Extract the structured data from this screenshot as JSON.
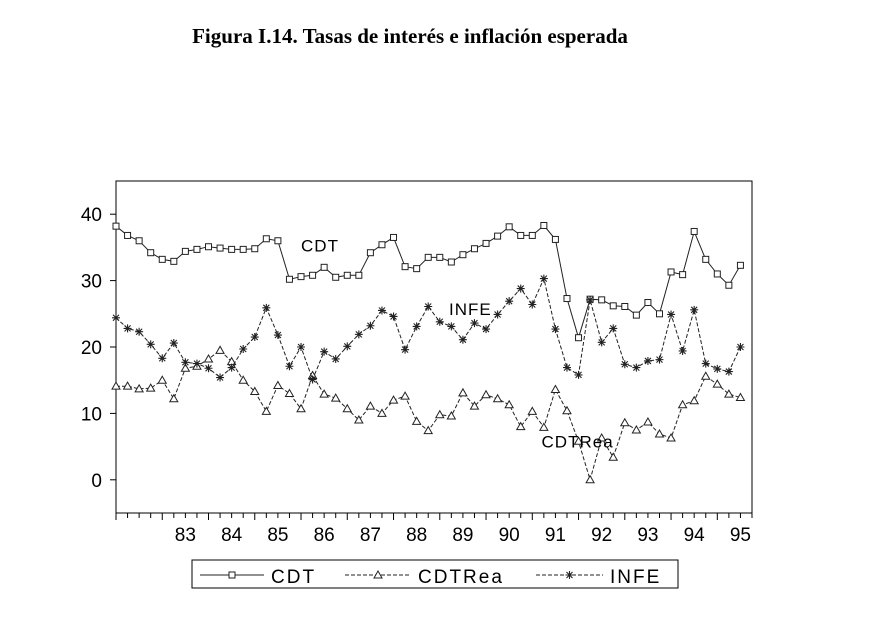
{
  "title": "Figura I.14. Tasas de interés e inflación esperada",
  "chart_data": {
    "type": "line",
    "title": "Figura I.14. Tasas de interés e inflación esperada",
    "xlabel": "",
    "ylabel": "",
    "ylim": [
      -5,
      45
    ],
    "yticks": [
      0,
      10,
      20,
      30,
      40
    ],
    "x_start": 82.0,
    "x_step": 0.25,
    "x_tick_labels": [
      "83",
      "84",
      "85",
      "86",
      "87",
      "88",
      "89",
      "90",
      "91",
      "92",
      "93",
      "94",
      "95"
    ],
    "x_tick_values": [
      83,
      84,
      85,
      86,
      87,
      88,
      89,
      90,
      91,
      92,
      93,
      94,
      95
    ],
    "grid": false,
    "legend_position": "bottom",
    "series": [
      {
        "name": "CDT",
        "marker": "square",
        "dash": "solid",
        "label": "CDT",
        "values": [
          38.2,
          36.8,
          36.0,
          34.2,
          33.2,
          32.9,
          34.4,
          34.7,
          35.1,
          34.9,
          34.7,
          34.7,
          34.8,
          36.3,
          36.0,
          30.2,
          30.6,
          30.8,
          32.0,
          30.5,
          30.8,
          30.8,
          34.2,
          35.4,
          36.5,
          32.1,
          31.8,
          33.5,
          33.5,
          32.8,
          33.9,
          34.8,
          35.6,
          36.7,
          38.1,
          36.8,
          36.8,
          38.3,
          36.2,
          27.3,
          21.4,
          27.2,
          27.1,
          26.2,
          26.1,
          24.8,
          26.7,
          25.0,
          31.3,
          30.9,
          37.4,
          33.2,
          31.0,
          29.3,
          32.3
        ]
      },
      {
        "name": "CDTRea",
        "marker": "triangle",
        "dash": "dashed",
        "label": "CDTRea",
        "values": [
          14.1,
          14.1,
          13.7,
          13.8,
          15.0,
          12.2,
          16.8,
          17.1,
          18.2,
          19.5,
          17.8,
          15.0,
          13.3,
          10.3,
          14.2,
          13.0,
          10.7,
          15.7,
          12.9,
          12.3,
          10.7,
          9.0,
          11.1,
          10.0,
          12.0,
          12.6,
          8.8,
          7.4,
          9.8,
          9.6,
          13.1,
          11.1,
          12.8,
          12.2,
          11.3,
          8.0,
          10.3,
          7.9,
          13.6,
          10.4,
          5.8,
          0.0,
          6.3,
          3.4,
          8.6,
          7.5,
          8.7,
          6.9,
          6.3,
          11.3,
          11.9,
          15.6,
          14.4,
          12.9,
          12.4
        ]
      },
      {
        "name": "INFE",
        "marker": "star",
        "dash": "dashed",
        "label": "INFE",
        "values": [
          24.4,
          22.8,
          22.3,
          20.4,
          18.3,
          20.6,
          17.7,
          17.5,
          16.8,
          15.4,
          16.9,
          19.7,
          21.5,
          25.9,
          21.8,
          17.1,
          20.0,
          15.1,
          19.3,
          18.2,
          20.1,
          21.9,
          23.2,
          25.5,
          24.6,
          19.6,
          23.1,
          26.1,
          23.8,
          23.1,
          21.1,
          23.6,
          22.7,
          24.9,
          26.9,
          28.8,
          26.4,
          30.3,
          22.7,
          16.9,
          15.8,
          27.1,
          20.7,
          22.8,
          17.4,
          16.9,
          17.9,
          18.1,
          24.9,
          19.4,
          25.6,
          17.5,
          16.7,
          16.3,
          20.0
        ]
      }
    ]
  },
  "legend": {
    "items": [
      {
        "name": "CDT",
        "label": "CDT",
        "marker": "square",
        "dash": "solid"
      },
      {
        "name": "CDTRea",
        "label": "CDTRea",
        "marker": "triangle",
        "dash": "dashed"
      },
      {
        "name": "INFE",
        "label": "INFE",
        "marker": "star",
        "dash": "dashed"
      }
    ]
  },
  "colors": {
    "line": "#222222",
    "axis": "#000000",
    "background": "#ffffff"
  }
}
